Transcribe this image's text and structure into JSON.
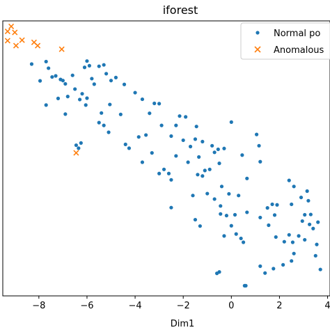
{
  "chart_data": {
    "type": "scatter",
    "title": "iforest",
    "xlabel": "Dim1",
    "ylabel": "",
    "xlim": [
      -9.5,
      4.1
    ],
    "ylim": [
      0,
      1
    ],
    "xticks": [
      -8,
      -6,
      -4,
      -2,
      0,
      2,
      4
    ],
    "xtick_labels": [
      "−8",
      "−6",
      "−4",
      "−2",
      "0",
      "2",
      "4"
    ],
    "legend_position": "top-right",
    "grid": false,
    "series": [
      {
        "name": "Normal po",
        "color": "#1f77b4",
        "marker": "dot",
        "points": [
          [
            -8.3,
            0.843
          ],
          [
            -7.95,
            0.782
          ],
          [
            -7.7,
            0.852
          ],
          [
            -7.6,
            0.828
          ],
          [
            -7.3,
            0.8
          ],
          [
            -7.1,
            0.787
          ],
          [
            -7.45,
            0.796
          ],
          [
            -7.0,
            0.783
          ],
          [
            -6.9,
            0.771
          ],
          [
            -6.6,
            0.802
          ],
          [
            -6.5,
            0.752
          ],
          [
            -6.8,
            0.725
          ],
          [
            -6.1,
            0.831
          ],
          [
            -6.0,
            0.854
          ],
          [
            -5.9,
            0.837
          ],
          [
            -5.5,
            0.835
          ],
          [
            -5.8,
            0.79
          ],
          [
            -5.7,
            0.77
          ],
          [
            -6.2,
            0.735
          ],
          [
            -6.9,
            0.661
          ],
          [
            -7.2,
            0.718
          ],
          [
            -7.7,
            0.694
          ],
          [
            -6.0,
            0.719
          ],
          [
            -6.3,
            0.714
          ],
          [
            -6.05,
            0.694
          ],
          [
            -5.3,
            0.84
          ],
          [
            -5.2,
            0.808
          ],
          [
            -5.0,
            0.783
          ],
          [
            -4.8,
            0.794
          ],
          [
            -4.45,
            0.769
          ],
          [
            -4.0,
            0.739
          ],
          [
            -3.7,
            0.715
          ],
          [
            -3.2,
            0.7
          ],
          [
            -3.0,
            0.699
          ],
          [
            -3.4,
            0.664
          ],
          [
            -3.55,
            0.585
          ],
          [
            -3.85,
            0.578
          ],
          [
            -4.25,
            0.537
          ],
          [
            -4.4,
            0.551
          ],
          [
            -5.1,
            0.595
          ],
          [
            -5.3,
            0.62
          ],
          [
            -5.5,
            0.63
          ],
          [
            -5.4,
            0.665
          ],
          [
            -5.05,
            0.696
          ],
          [
            -4.6,
            0.66
          ],
          [
            -6.35,
            0.537
          ],
          [
            -6.25,
            0.556
          ],
          [
            -6.45,
            0.548
          ],
          [
            -2.9,
            0.62
          ],
          [
            -2.5,
            0.581
          ],
          [
            -2.0,
            0.566
          ],
          [
            -1.5,
            0.57
          ],
          [
            -1.7,
            0.543
          ],
          [
            -1.2,
            0.561
          ],
          [
            -1.35,
            0.505
          ],
          [
            -1.8,
            0.486
          ],
          [
            -2.3,
            0.509
          ],
          [
            -2.6,
            0.445
          ],
          [
            -2.8,
            0.46
          ],
          [
            -2.5,
            0.422
          ],
          [
            -3.0,
            0.445
          ],
          [
            -3.7,
            0.486
          ],
          [
            -3.3,
            0.52
          ],
          [
            -2.3,
            0.62
          ],
          [
            -2.15,
            0.654
          ],
          [
            -1.9,
            0.651
          ],
          [
            -1.45,
            0.616
          ],
          [
            -0.8,
            0.546
          ],
          [
            -0.7,
            0.522
          ],
          [
            -0.55,
            0.533
          ],
          [
            -0.3,
            0.536
          ],
          [
            -0.5,
            0.482
          ],
          [
            -0.9,
            0.46
          ],
          [
            -1.1,
            0.456
          ],
          [
            -1.2,
            0.436
          ],
          [
            -1.4,
            0.441
          ],
          [
            0.0,
            0.632
          ],
          [
            0.45,
            0.512
          ],
          [
            1.05,
            0.587
          ],
          [
            1.15,
            0.546
          ],
          [
            1.2,
            0.488
          ],
          [
            0.65,
            0.427
          ],
          [
            0.3,
            0.365
          ],
          [
            -0.1,
            0.371
          ],
          [
            -0.4,
            0.398
          ],
          [
            -1.0,
            0.372
          ],
          [
            -1.6,
            0.365
          ],
          [
            -0.7,
            0.352
          ],
          [
            -0.45,
            0.327
          ],
          [
            -0.45,
            0.298
          ],
          [
            -0.2,
            0.292
          ],
          [
            0.15,
            0.295
          ],
          [
            0.65,
            0.304
          ],
          [
            0.0,
            0.255
          ],
          [
            -0.3,
            0.218
          ],
          [
            0.2,
            0.225
          ],
          [
            0.4,
            0.209
          ],
          [
            0.5,
            0.195
          ],
          [
            -2.5,
            0.321
          ],
          [
            -1.5,
            0.277
          ],
          [
            -1.3,
            0.254
          ],
          [
            -0.5,
            0.087
          ],
          [
            -0.6,
            0.082
          ],
          [
            0.55,
            0.037
          ],
          [
            0.6,
            0.037
          ],
          [
            1.2,
            0.285
          ],
          [
            1.5,
            0.32
          ],
          [
            1.7,
            0.333
          ],
          [
            1.9,
            0.331
          ],
          [
            1.8,
            0.294
          ],
          [
            1.55,
            0.257
          ],
          [
            1.85,
            0.214
          ],
          [
            2.2,
            0.197
          ],
          [
            2.4,
            0.222
          ],
          [
            2.55,
            0.195
          ],
          [
            2.8,
            0.218
          ],
          [
            2.6,
            0.154
          ],
          [
            2.5,
            0.127
          ],
          [
            2.15,
            0.113
          ],
          [
            1.75,
            0.099
          ],
          [
            1.4,
            0.083
          ],
          [
            1.2,
            0.108
          ],
          [
            2.5,
            0.333
          ],
          [
            2.9,
            0.358
          ],
          [
            3.15,
            0.381
          ],
          [
            3.2,
            0.346
          ],
          [
            3.05,
            0.295
          ],
          [
            2.95,
            0.272
          ],
          [
            3.25,
            0.26
          ],
          [
            3.4,
            0.245
          ],
          [
            3.05,
            0.204
          ],
          [
            3.55,
            0.187
          ],
          [
            3.5,
            0.146
          ],
          [
            3.7,
            0.096
          ],
          [
            2.4,
            0.42
          ],
          [
            2.6,
            0.398
          ],
          [
            3.3,
            0.296
          ],
          [
            3.6,
            0.268
          ]
        ]
      },
      {
        "name": "Anomalous",
        "color": "#ff7f0e",
        "marker": "x",
        "points": [
          [
            -9.15,
            0.98
          ],
          [
            -9.3,
            0.962
          ],
          [
            -9.0,
            0.958
          ],
          [
            -9.3,
            0.928
          ],
          [
            -8.95,
            0.91
          ],
          [
            -8.7,
            0.93
          ],
          [
            -8.2,
            0.922
          ],
          [
            -8.05,
            0.91
          ],
          [
            -7.05,
            0.897
          ],
          [
            -6.45,
            0.52
          ]
        ]
      }
    ]
  }
}
